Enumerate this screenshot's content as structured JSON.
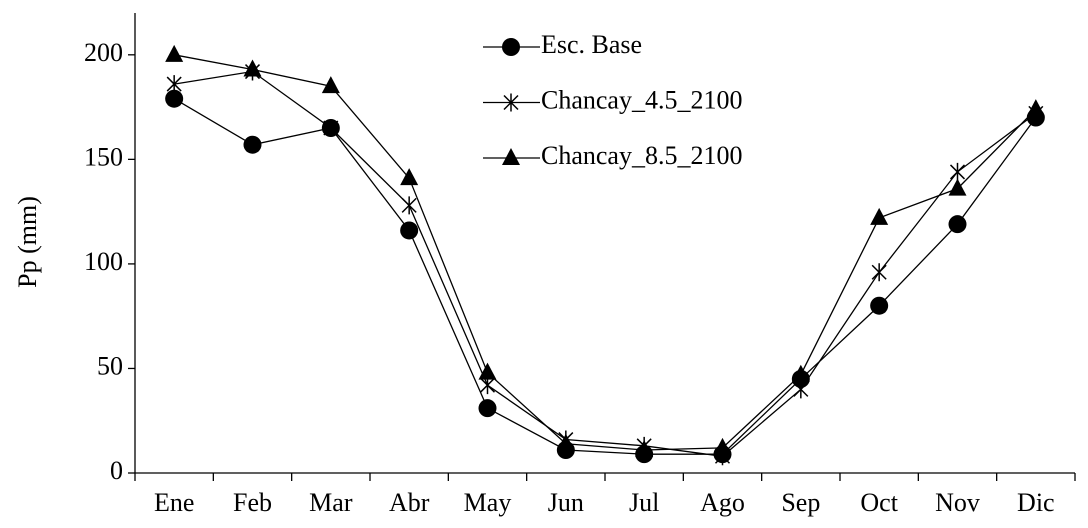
{
  "chart_data": {
    "type": "line",
    "y_label": "Pp (mm)",
    "categories": [
      "Ene",
      "Feb",
      "Mar",
      "Abr",
      "May",
      "Jun",
      "Jul",
      "Ago",
      "Sep",
      "Oct",
      "Nov",
      "Dic"
    ],
    "series": [
      {
        "name": "Esc. Base",
        "color": "#000000",
        "marker": "circle",
        "values": [
          179,
          157,
          165,
          116,
          31,
          11,
          9,
          9,
          45,
          80,
          119,
          170
        ]
      },
      {
        "name": "Chancay_4.5_2100",
        "color": "#000000",
        "marker": "star",
        "values": [
          186,
          192,
          165,
          128,
          42,
          16,
          13,
          8,
          40,
          96,
          144,
          172
        ]
      },
      {
        "name": "Chancay_8.5_2100",
        "color": "#000000",
        "marker": "triangle",
        "values": [
          200,
          193,
          185,
          141,
          48,
          14,
          11,
          12,
          47,
          122,
          136,
          174
        ]
      }
    ],
    "ylim": [
      0,
      220
    ],
    "yticks": [
      0,
      50,
      100,
      150,
      200
    ],
    "grid": false,
    "legend": "top-center"
  }
}
